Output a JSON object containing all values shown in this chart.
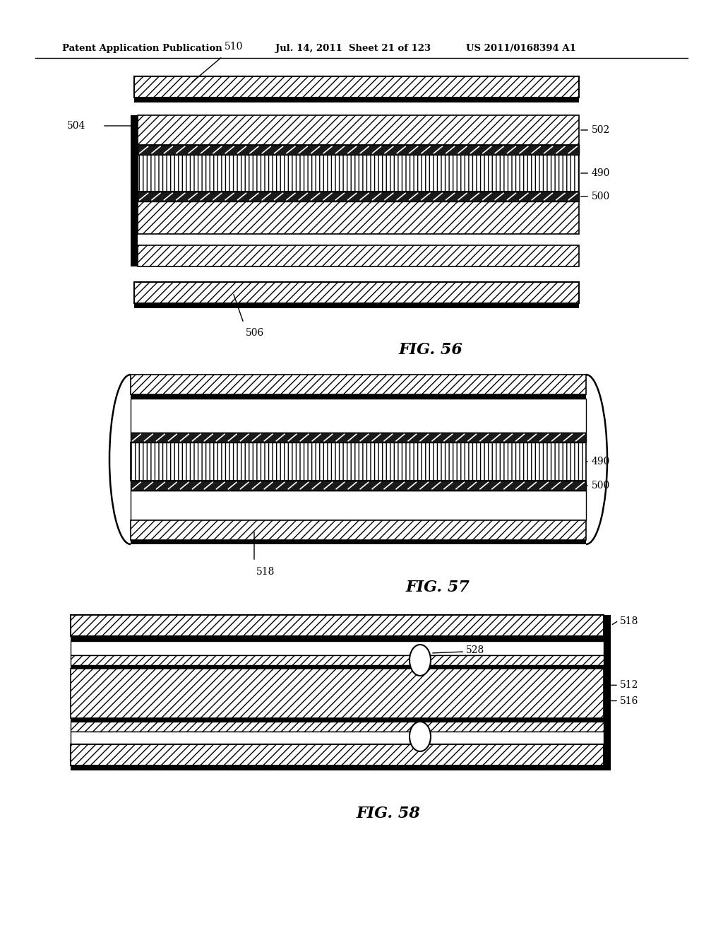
{
  "bg_color": "#ffffff",
  "header_left": "Patent Application Publication",
  "header_mid": "Jul. 14, 2011  Sheet 21 of 123",
  "header_right": "US 2011/0168394 A1",
  "fig56_label": "FIG. 56",
  "fig57_label": "FIG. 57",
  "fig58_label": "FIG. 58",
  "lw_thin": 1.0,
  "lw_med": 1.5,
  "lw_thick": 2.5
}
